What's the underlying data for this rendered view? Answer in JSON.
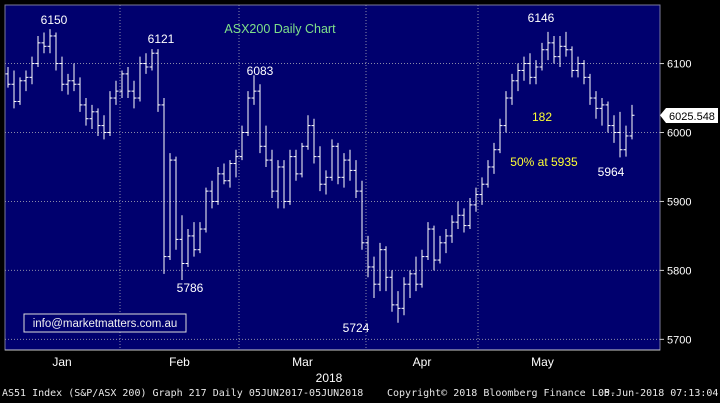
{
  "chart_data": {
    "type": "candlestick",
    "title": "ASX200 Daily Chart",
    "months": [
      "Jan",
      "Feb",
      "Mar",
      "Apr",
      "May"
    ],
    "year_label": "2018",
    "ylim": [
      5680,
      6180
    ],
    "y_ticks": [
      5700,
      5800,
      5900,
      6000,
      6100
    ],
    "grid": true,
    "last_price": "6025.548",
    "annotations": {
      "peak_1": "6150",
      "peak_2": "6121",
      "peak_3": "6083",
      "peak_4": "6146",
      "low_1": "5786",
      "low_2": "5724",
      "low_3": "5964",
      "points_label": "182",
      "retrace_label": "50% at 5935"
    },
    "watermark": "info@marketmatters.com.au",
    "bars": [
      [
        6085,
        6095,
        6065,
        6070
      ],
      [
        6070,
        6090,
        6035,
        6045
      ],
      [
        6045,
        6080,
        6040,
        6075
      ],
      [
        6075,
        6090,
        6060,
        6080
      ],
      [
        6080,
        6110,
        6070,
        6100
      ],
      [
        6100,
        6140,
        6095,
        6130
      ],
      [
        6130,
        6145,
        6115,
        6125
      ],
      [
        6125,
        6150,
        6115,
        6140
      ],
      [
        6140,
        6145,
        6090,
        6100
      ],
      [
        6100,
        6110,
        6060,
        6070
      ],
      [
        6070,
        6085,
        6055,
        6075
      ],
      [
        6075,
        6100,
        6060,
        6070
      ],
      [
        6070,
        6080,
        6030,
        6040
      ],
      [
        6040,
        6050,
        6010,
        6020
      ],
      [
        6020,
        6040,
        6005,
        6030
      ],
      [
        6030,
        6035,
        5995,
        6010
      ],
      [
        6010,
        6025,
        5990,
        6000
      ],
      [
        6000,
        6060,
        5995,
        6050
      ],
      [
        6050,
        6075,
        6040,
        6060
      ],
      [
        6060,
        6090,
        6050,
        6085
      ],
      [
        6085,
        6095,
        6050,
        6060
      ],
      [
        6060,
        6075,
        6035,
        6050
      ],
      [
        6050,
        6110,
        6045,
        6100
      ],
      [
        6100,
        6115,
        6085,
        6095
      ],
      [
        6095,
        6121,
        6090,
        6115
      ],
      [
        6115,
        6121,
        6030,
        6040
      ],
      [
        6040,
        6050,
        5795,
        5820
      ],
      [
        5820,
        5970,
        5815,
        5960
      ],
      [
        5960,
        5965,
        5830,
        5845
      ],
      [
        5845,
        5880,
        5786,
        5810
      ],
      [
        5810,
        5860,
        5805,
        5850
      ],
      [
        5850,
        5870,
        5820,
        5830
      ],
      [
        5830,
        5870,
        5825,
        5860
      ],
      [
        5860,
        5920,
        5855,
        5915
      ],
      [
        5915,
        5930,
        5890,
        5900
      ],
      [
        5900,
        5950,
        5895,
        5940
      ],
      [
        5940,
        5955,
        5925,
        5930
      ],
      [
        5930,
        5960,
        5920,
        5955
      ],
      [
        5955,
        5975,
        5935,
        5965
      ],
      [
        5965,
        6010,
        5960,
        6000
      ],
      [
        6000,
        6060,
        5995,
        6050
      ],
      [
        6050,
        6083,
        6040,
        6060
      ],
      [
        6060,
        6070,
        5970,
        5980
      ],
      [
        5980,
        6010,
        5950,
        5960
      ],
      [
        5960,
        5975,
        5905,
        5915
      ],
      [
        5915,
        5960,
        5890,
        5950
      ],
      [
        5950,
        5960,
        5890,
        5900
      ],
      [
        5900,
        5975,
        5895,
        5965
      ],
      [
        5965,
        5975,
        5930,
        5940
      ],
      [
        5940,
        5985,
        5935,
        5980
      ],
      [
        5980,
        6025,
        5975,
        6010
      ],
      [
        6010,
        6020,
        5955,
        5965
      ],
      [
        5965,
        5980,
        5915,
        5925
      ],
      [
        5925,
        5945,
        5910,
        5935
      ],
      [
        5935,
        5990,
        5930,
        5980
      ],
      [
        5980,
        5985,
        5925,
        5935
      ],
      [
        5935,
        5970,
        5920,
        5960
      ],
      [
        5960,
        5975,
        5930,
        5945
      ],
      [
        5945,
        5960,
        5905,
        5915
      ],
      [
        5915,
        5930,
        5830,
        5840
      ],
      [
        5840,
        5850,
        5790,
        5805
      ],
      [
        5805,
        5820,
        5760,
        5780
      ],
      [
        5780,
        5840,
        5770,
        5830
      ],
      [
        5830,
        5835,
        5770,
        5790
      ],
      [
        5790,
        5800,
        5740,
        5750
      ],
      [
        5750,
        5770,
        5724,
        5745
      ],
      [
        5745,
        5790,
        5735,
        5780
      ],
      [
        5780,
        5800,
        5760,
        5795
      ],
      [
        5795,
        5820,
        5770,
        5780
      ],
      [
        5780,
        5830,
        5775,
        5820
      ],
      [
        5820,
        5870,
        5815,
        5860
      ],
      [
        5860,
        5865,
        5800,
        5815
      ],
      [
        5815,
        5850,
        5810,
        5840
      ],
      [
        5840,
        5860,
        5825,
        5850
      ],
      [
        5850,
        5880,
        5840,
        5870
      ],
      [
        5870,
        5900,
        5860,
        5880
      ],
      [
        5880,
        5890,
        5855,
        5865
      ],
      [
        5865,
        5905,
        5860,
        5895
      ],
      [
        5895,
        5920,
        5885,
        5910
      ],
      [
        5910,
        5935,
        5895,
        5925
      ],
      [
        5925,
        5960,
        5920,
        5950
      ],
      [
        5950,
        5985,
        5940,
        5975
      ],
      [
        5975,
        6020,
        5970,
        6010
      ],
      [
        6010,
        6060,
        6000,
        6050
      ],
      [
        6050,
        6085,
        6040,
        6075
      ],
      [
        6075,
        6100,
        6060,
        6090
      ],
      [
        6090,
        6110,
        6075,
        6100
      ],
      [
        6100,
        6115,
        6070,
        6080
      ],
      [
        6080,
        6105,
        6070,
        6095
      ],
      [
        6095,
        6130,
        6090,
        6120
      ],
      [
        6120,
        6146,
        6105,
        6130
      ],
      [
        6130,
        6140,
        6100,
        6110
      ],
      [
        6110,
        6140,
        6095,
        6125
      ],
      [
        6125,
        6146,
        6110,
        6120
      ],
      [
        6120,
        6125,
        6080,
        6090
      ],
      [
        6090,
        6110,
        6080,
        6100
      ],
      [
        6100,
        6105,
        6070,
        6080
      ],
      [
        6080,
        6085,
        6040,
        6050
      ],
      [
        6050,
        6060,
        6020,
        6035
      ],
      [
        6035,
        6050,
        6010,
        6040
      ],
      [
        6040,
        6045,
        6000,
        6010
      ],
      [
        6010,
        6025,
        5985,
        6000
      ],
      [
        6000,
        6030,
        5964,
        5975
      ],
      [
        5975,
        6010,
        5965,
        5995
      ],
      [
        5995,
        6040,
        5990,
        6025
      ]
    ]
  },
  "footer": {
    "left": "AS51 Index (S&P/ASX 200) Graph 217  Daily 05JUN2017-05JUN2018",
    "middle": "Copyright© 2018 Bloomberg Finance L.P.",
    "right": "05-Jun-2018 07:13:04"
  }
}
